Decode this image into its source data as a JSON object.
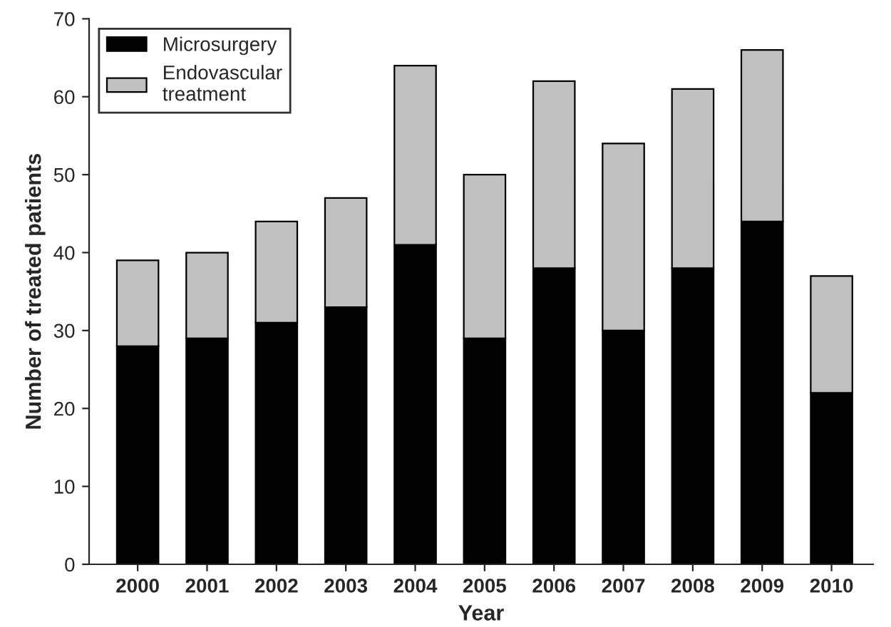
{
  "chart_data": {
    "type": "bar",
    "stacked": true,
    "xlabel": "Year",
    "ylabel": "Number of treated patients",
    "categories": [
      "2000",
      "2001",
      "2002",
      "2003",
      "2004",
      "2005",
      "2006",
      "2007",
      "2008",
      "2009",
      "2010"
    ],
    "series": [
      {
        "name": "Microsurgery",
        "color": "#000000",
        "values": [
          28,
          29,
          31,
          33,
          41,
          29,
          38,
          30,
          38,
          44,
          22
        ]
      },
      {
        "name": "Endovascular\ntreatment",
        "color": "#c0c0c0",
        "values": [
          11,
          11,
          13,
          14,
          23,
          21,
          24,
          24,
          23,
          22,
          15
        ]
      }
    ],
    "ylim": [
      0,
      70
    ],
    "yticks": [
      0,
      10,
      20,
      30,
      40,
      50,
      60,
      70
    ],
    "grid": false,
    "legend": "top left"
  }
}
